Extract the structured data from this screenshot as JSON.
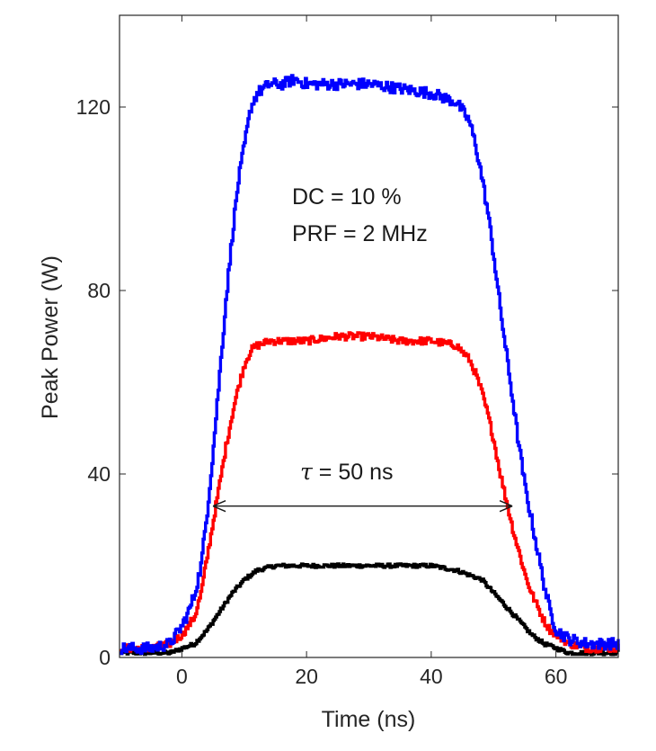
{
  "chart_data": {
    "type": "line",
    "title": "",
    "xlabel": "Time (ns)",
    "ylabel": "Peak Power (W)",
    "xlim": [
      -10,
      70
    ],
    "ylim": [
      0,
      140
    ],
    "xticks": [
      0,
      20,
      40,
      60
    ],
    "yticks": [
      0,
      40,
      80,
      120
    ],
    "grid": false,
    "series": [
      {
        "name": "blue",
        "color": "#0000ff",
        "x": [
          -10,
          -5,
          -2,
          0,
          1,
          2,
          3,
          4,
          5,
          6,
          7,
          8,
          9,
          10,
          11,
          12,
          14,
          16,
          18,
          20,
          25,
          30,
          35,
          40,
          44,
          46,
          47,
          48,
          49,
          50,
          51,
          52,
          53,
          54,
          55,
          56,
          57,
          58,
          59,
          60,
          62,
          65,
          70
        ],
        "y": [
          2,
          2,
          3,
          7,
          10,
          14,
          20,
          32,
          46,
          62,
          78,
          92,
          104,
          112,
          120,
          123,
          125,
          125,
          126,
          125,
          125,
          125,
          124,
          123,
          121,
          117,
          112,
          105,
          97,
          87,
          76,
          66,
          56,
          46,
          37,
          30,
          23,
          16,
          10,
          6,
          4,
          3,
          3
        ],
        "noise": 1.2
      },
      {
        "name": "red",
        "color": "#ff0000",
        "x": [
          -10,
          -5,
          -2,
          0,
          2,
          3,
          4,
          5,
          6,
          7,
          8,
          9,
          10,
          11,
          12,
          14,
          16,
          20,
          25,
          30,
          35,
          40,
          44,
          46,
          47,
          48,
          49,
          50,
          51,
          52,
          53,
          54,
          55,
          56,
          57,
          58,
          59,
          60,
          62,
          65,
          70
        ],
        "y": [
          2,
          2,
          3,
          5,
          9,
          14,
          22,
          30,
          38,
          46,
          53,
          59,
          64,
          67,
          68,
          69,
          69,
          69,
          70,
          70,
          69,
          69,
          68,
          65,
          62,
          58,
          53,
          47,
          40,
          34,
          28,
          23,
          18,
          14,
          11,
          8,
          6,
          5,
          3,
          2,
          2
        ],
        "noise": 0.8
      },
      {
        "name": "black",
        "color": "#000000",
        "x": [
          -10,
          -5,
          -2,
          0,
          2,
          4,
          6,
          8,
          10,
          12,
          15,
          20,
          25,
          30,
          35,
          40,
          44,
          46,
          48,
          50,
          52,
          54,
          56,
          58,
          60,
          62,
          65,
          70
        ],
        "y": [
          1,
          1,
          1,
          2,
          3,
          6,
          10,
          14,
          17,
          19,
          20,
          20,
          20,
          20,
          20,
          20,
          19,
          18,
          17,
          14,
          11,
          8,
          5,
          3,
          2,
          1,
          1,
          1
        ],
        "noise": 0.4
      }
    ],
    "annotations": {
      "dc": "DC = 10 %",
      "prf": "PRF = 2 MHz",
      "tau_symbol": "τ",
      "tau_text": " = 50 ns",
      "arrow": {
        "x_start": 5,
        "x_end": 53,
        "y": 33
      }
    }
  }
}
